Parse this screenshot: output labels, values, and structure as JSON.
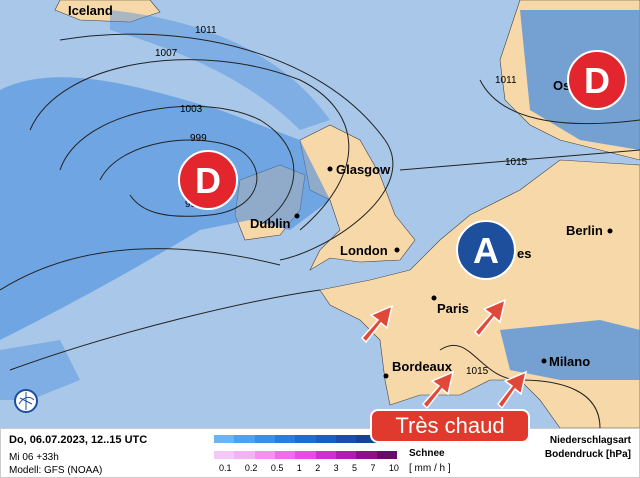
{
  "map": {
    "cities": [
      "Iceland",
      "Glasgow",
      "Dublin",
      "London",
      "Paris",
      "Berlin",
      "Bordeaux",
      "Milano",
      "Os",
      "es"
    ],
    "isobars": [
      "1011",
      "1007",
      "1003",
      "999",
      "99",
      "1015",
      "1011",
      "1015"
    ],
    "pressure_systems": [
      {
        "label": "D",
        "type": "low",
        "color": "#e3262e"
      },
      {
        "label": "D",
        "type": "low",
        "color": "#e3262e"
      },
      {
        "label": "A",
        "type": "high",
        "color": "#1d4f9c"
      }
    ],
    "arrows_color": "#e0483a",
    "colors": {
      "sea": "#a9c7e8",
      "land": "#f7d8a8",
      "rain": "#4a8fe0"
    }
  },
  "badge": {
    "label": "Très chaud"
  },
  "footer": {
    "date": "Do, 06.07.2023, 12..15 UTC",
    "run": "Mi 06 +33h",
    "model": "Modell: GFS (NOAA)",
    "snow_label": "Schnee",
    "unit": "[ mm / h ]",
    "ticks": [
      "0.1",
      "0.2",
      "0.5",
      "1",
      "2",
      "3",
      "5",
      "7",
      "10"
    ],
    "right1": "Niederschlagsart",
    "right2": "Bodendruck [hPa]",
    "rain_colors": [
      "#6ab4f5",
      "#4ea1ee",
      "#3a8fe6",
      "#2a7ddc",
      "#1e6cd0",
      "#1a5fc0",
      "#1550aa",
      "#124595",
      "#0d3a80"
    ],
    "snow_colors": [
      "#f7c8f7",
      "#f4b3f4",
      "#f590f5",
      "#ef6cef",
      "#e54de5",
      "#cf2fcf",
      "#b01cb0",
      "#8c0f8c",
      "#6a0a6a"
    ]
  }
}
